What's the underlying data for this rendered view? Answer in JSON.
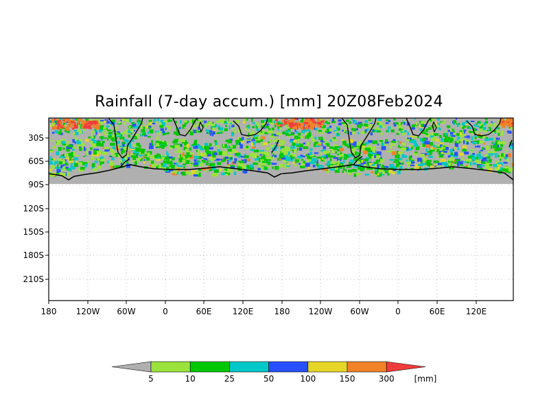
{
  "title": "Rainfall (7-day accum.) [mm] 20Z08Feb2024",
  "map": {
    "lat_labels": [
      "30S",
      "60S",
      "90S",
      "120S",
      "150S",
      "180S",
      "210S"
    ],
    "lon_labels": [
      "180",
      "120W",
      "60W",
      "0",
      "60E",
      "120E",
      "180",
      "120W",
      "60W",
      "0",
      "60E",
      "120E"
    ],
    "no_data_color": "#b0b0b0",
    "land_outline_color": "#000000"
  },
  "colorbar": {
    "unit": "[mm]",
    "thresholds": [
      "5",
      "10",
      "25",
      "50",
      "100",
      "150",
      "300"
    ],
    "colors": [
      "#b0b0b0",
      "#9be23c",
      "#00c800",
      "#00c8c8",
      "#2850ff",
      "#e6d628",
      "#f08228",
      "#f03c3c"
    ]
  }
}
